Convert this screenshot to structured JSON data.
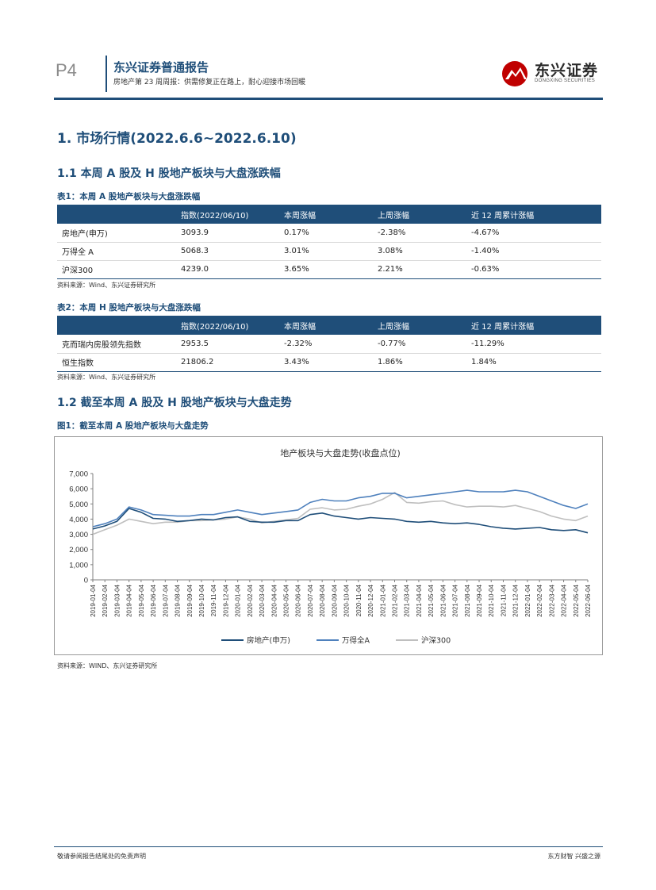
{
  "header": {
    "page_label": "P4",
    "report_title": "东兴证券普通报告",
    "report_subtitle": "房地产第 23 周周报：供需修复正在路上，耐心迎接市场回暖",
    "logo_cn": "东兴证券",
    "logo_en": "DONGXING SECURITIES"
  },
  "section1": {
    "title": "1. 市场行情(2022.6.6~2022.6.10)"
  },
  "section1_1": {
    "title": "1.1 本周 A 股及 H 股地产板块与大盘涨跌幅"
  },
  "table1": {
    "caption": "表1：本周 A 股地产板块与大盘涨跌幅",
    "headers": [
      "",
      "指数(2022/06/10)",
      "本周涨幅",
      "上周涨幅",
      "近 12 周累计涨幅"
    ],
    "rows": [
      [
        "房地产(申万)",
        "3093.9",
        "0.17%",
        "-2.38%",
        "-4.67%"
      ],
      [
        "万得全 A",
        "5068.3",
        "3.01%",
        "3.08%",
        "-1.40%"
      ],
      [
        "沪深300",
        "4239.0",
        "3.65%",
        "2.21%",
        "-0.63%"
      ]
    ],
    "source": "资料来源：Wind、东兴证券研究所"
  },
  "table2": {
    "caption": "表2：本周 H 股地产板块与大盘涨跌幅",
    "headers": [
      "",
      "指数(2022/06/10)",
      "本周涨幅",
      "上周涨幅",
      "近 12 周累计涨幅"
    ],
    "rows": [
      [
        "克而瑞内房股领先指数",
        "2953.5",
        "-2.32%",
        "-0.77%",
        "-11.29%"
      ],
      [
        "恒生指数",
        "21806.2",
        "3.43%",
        "1.86%",
        "1.84%"
      ]
    ],
    "source": "资料来源：Wind、东兴证券研究所"
  },
  "section1_2": {
    "title": "1.2 截至本周 A 股及 H 股地产板块与大盘走势"
  },
  "figure1": {
    "caption": "图1：截至本周 A 股地产板块与大盘走势",
    "source": "资料来源：WIND、东兴证券研究所"
  },
  "chart_data": {
    "type": "line",
    "title": "地产板块与大盘走势(收盘点位)",
    "ylim": [
      0,
      7000
    ],
    "yticks": [
      "7,000",
      "6,000",
      "5,000",
      "4,000",
      "3,000",
      "2,000",
      "1,000",
      "0"
    ],
    "grid": false,
    "legend_position": "bottom",
    "x": [
      "2019-01-04",
      "2019-02-04",
      "2019-03-04",
      "2019-04-04",
      "2019-05-04",
      "2019-06-04",
      "2019-07-04",
      "2019-08-04",
      "2019-09-04",
      "2019-10-04",
      "2019-11-04",
      "2019-12-04",
      "2020-01-04",
      "2020-02-04",
      "2020-03-04",
      "2020-04-04",
      "2020-05-04",
      "2020-06-04",
      "2020-07-04",
      "2020-08-04",
      "2020-09-04",
      "2020-10-04",
      "2020-11-04",
      "2020-12-04",
      "2021-01-04",
      "2021-02-04",
      "2021-03-04",
      "2021-04-04",
      "2021-05-04",
      "2021-06-04",
      "2021-07-04",
      "2021-08-04",
      "2021-09-04",
      "2021-10-04",
      "2021-11-04",
      "2021-12-04",
      "2022-01-04",
      "2022-02-04",
      "2022-03-04",
      "2022-04-04",
      "2022-05-04",
      "2022-06-04"
    ],
    "series": [
      {
        "name": "房地产(申万)",
        "color": "#1f4e79",
        "values": [
          3350,
          3550,
          3850,
          4700,
          4450,
          4050,
          4000,
          3850,
          3900,
          4000,
          3950,
          4100,
          4150,
          3850,
          3800,
          3800,
          3900,
          3900,
          4300,
          4400,
          4200,
          4100,
          4000,
          4100,
          4050,
          4000,
          3850,
          3800,
          3850,
          3750,
          3700,
          3750,
          3650,
          3500,
          3400,
          3350,
          3400,
          3450,
          3300,
          3250,
          3300,
          3100
        ]
      },
      {
        "name": "万得全A",
        "color": "#4f81bd",
        "values": [
          3500,
          3700,
          4000,
          4800,
          4600,
          4300,
          4250,
          4200,
          4200,
          4300,
          4300,
          4450,
          4600,
          4450,
          4300,
          4400,
          4500,
          4600,
          5100,
          5300,
          5200,
          5200,
          5400,
          5500,
          5700,
          5700,
          5400,
          5500,
          5600,
          5700,
          5800,
          5900,
          5800,
          5800,
          5800,
          5900,
          5800,
          5500,
          5200,
          4900,
          4700,
          5000
        ]
      },
      {
        "name": "沪深300",
        "color": "#bfbfbf",
        "values": [
          3000,
          3300,
          3600,
          4000,
          3850,
          3700,
          3800,
          3800,
          3900,
          3900,
          3950,
          4000,
          4150,
          4000,
          3750,
          3850,
          3950,
          4050,
          4650,
          4750,
          4600,
          4650,
          4850,
          5000,
          5300,
          5750,
          5100,
          5050,
          5150,
          5200,
          4950,
          4800,
          4850,
          4850,
          4800,
          4900,
          4700,
          4500,
          4200,
          4000,
          3900,
          4200
        ]
      }
    ]
  },
  "footer": {
    "left": "敬请参阅报告结尾处的免责声明",
    "right": "东方财智 兴盛之源"
  }
}
